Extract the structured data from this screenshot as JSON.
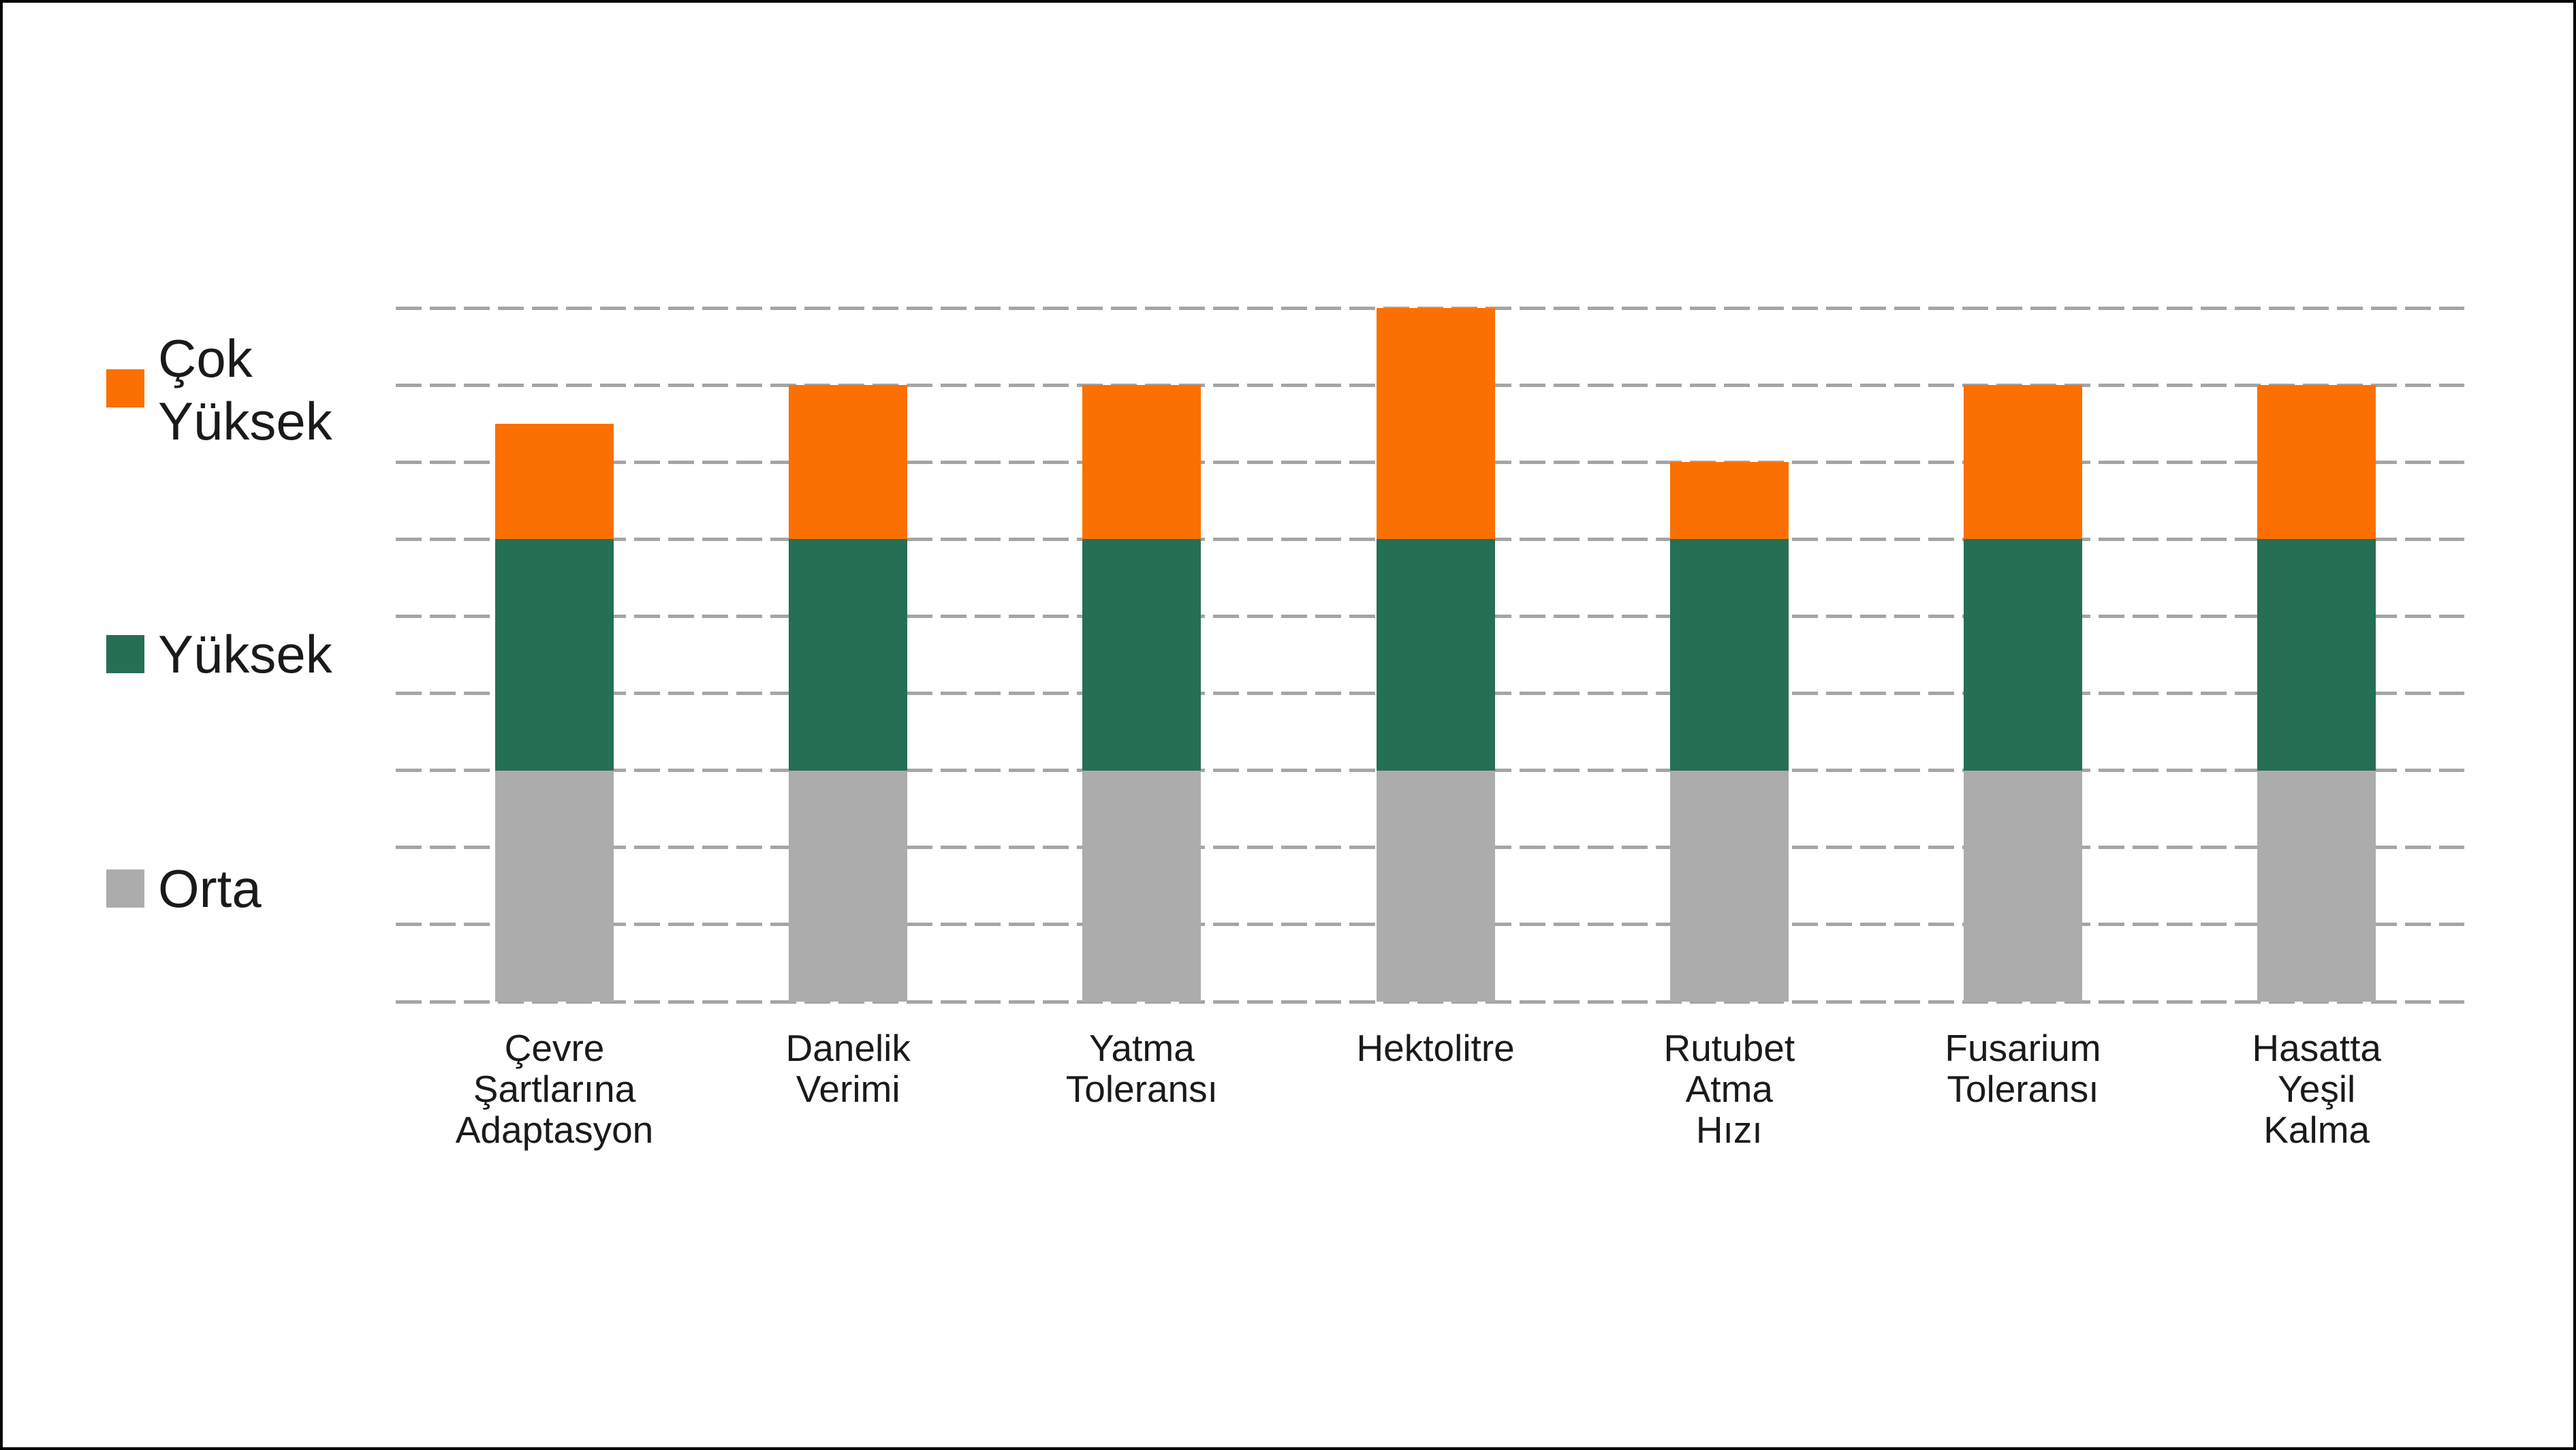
{
  "chart_data": {
    "type": "bar",
    "stacked": true,
    "title": "",
    "xlabel": "",
    "ylabel": "",
    "ylim": [
      0,
      9
    ],
    "gridline_count": 10,
    "grid_style": "dashed-horizontal",
    "legend_position": "left",
    "categories": [
      [
        "Çevre",
        "Şartlarına",
        "Adaptasyon"
      ],
      [
        "Danelik",
        "Verimi"
      ],
      [
        "Yatma",
        "Toleransı"
      ],
      [
        "Hektolitre"
      ],
      [
        "Rutubet",
        "Atma",
        "Hızı"
      ],
      [
        "Fusarium",
        "Toleransı"
      ],
      [
        "Hasatta",
        "Yeşil",
        "Kalma"
      ]
    ],
    "series": [
      {
        "name": "Orta",
        "color": "#acacac",
        "values": [
          3,
          3,
          3,
          3,
          3,
          3,
          3
        ]
      },
      {
        "name": "Yüksek",
        "color": "#256f55",
        "values": [
          3,
          3,
          3,
          3,
          3,
          3,
          3
        ]
      },
      {
        "name": "Çok Yüksek",
        "color": "#fb7000",
        "values": [
          1.5,
          2,
          2,
          3,
          1,
          2,
          2
        ]
      }
    ],
    "totals": [
      7.5,
      8,
      8,
      9,
      7,
      8,
      8
    ]
  },
  "legend": {
    "items": [
      {
        "label": "Çok Yüksek",
        "lines": [
          "Çok",
          "Yüksek"
        ],
        "color": "#fb7000"
      },
      {
        "label": "Yüksek",
        "lines": [
          "Yüksek"
        ],
        "color": "#256f55"
      },
      {
        "label": "Orta",
        "lines": [
          "Orta"
        ],
        "color": "#acacac"
      }
    ]
  },
  "colors": {
    "very_high": "#fb7000",
    "high": "#256f55",
    "medium": "#acacac",
    "gridline": "#a5a5a5",
    "text": "#1a1a1a",
    "frame": "#000000",
    "background": "#ffffff"
  }
}
